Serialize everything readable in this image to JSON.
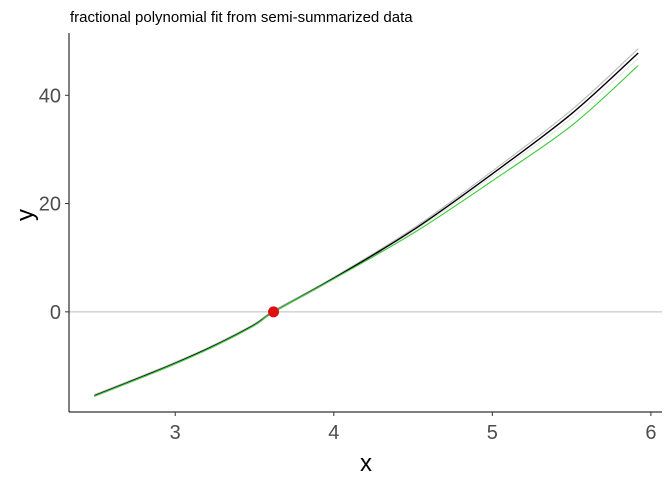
{
  "chart_data": {
    "type": "line",
    "title": "fractional polynomial fit from semi-summarized data",
    "xlabel": "x",
    "ylabel": "y",
    "xlim": [
      2.33,
      6.07
    ],
    "ylim": [
      -18.5,
      51.5
    ],
    "x_ticks": [
      3,
      4,
      5,
      6
    ],
    "y_ticks": [
      0,
      20,
      40
    ],
    "grid": false,
    "legend": "none",
    "reference_line": {
      "y": 0,
      "color": "#bdbdbd"
    },
    "series": [
      {
        "color": "#000000",
        "points": [
          [
            2.49,
            -15.5
          ],
          [
            2.8,
            -11.9
          ],
          [
            3.0,
            -9.5
          ],
          [
            3.25,
            -6.2
          ],
          [
            3.5,
            -2.4
          ],
          [
            3.62,
            0.0
          ],
          [
            4.0,
            6.2
          ],
          [
            4.5,
            15.1
          ],
          [
            5.0,
            25.5
          ],
          [
            5.5,
            36.6
          ],
          [
            5.92,
            47.8
          ]
        ]
      },
      {
        "color": "#e6e6e6",
        "points": [
          [
            2.49,
            -15.7
          ],
          [
            2.8,
            -12.1
          ],
          [
            3.0,
            -9.7
          ],
          [
            3.25,
            -6.4
          ],
          [
            3.5,
            -2.6
          ],
          [
            3.62,
            -0.2
          ],
          [
            4.0,
            6.0
          ],
          [
            4.5,
            14.8
          ],
          [
            5.0,
            25.0
          ],
          [
            5.5,
            35.8
          ],
          [
            5.92,
            46.8
          ]
        ]
      },
      {
        "color": "#bdbdbd",
        "points": [
          [
            2.49,
            -15.3
          ],
          [
            2.8,
            -11.7
          ],
          [
            3.0,
            -9.3
          ],
          [
            3.25,
            -6.0
          ],
          [
            3.5,
            -2.2
          ],
          [
            3.62,
            0.2
          ],
          [
            4.0,
            6.4
          ],
          [
            4.5,
            15.4
          ],
          [
            5.0,
            26.0
          ],
          [
            5.5,
            37.3
          ],
          [
            5.92,
            48.6
          ]
        ]
      },
      {
        "color": "#33cc33",
        "points": [
          [
            2.49,
            -15.6
          ],
          [
            2.8,
            -12.0
          ],
          [
            3.0,
            -9.6
          ],
          [
            3.25,
            -6.3
          ],
          [
            3.5,
            -2.5
          ],
          [
            3.62,
            0.0
          ],
          [
            4.0,
            6.1
          ],
          [
            4.5,
            14.5
          ],
          [
            5.0,
            24.2
          ],
          [
            5.5,
            34.4
          ],
          [
            5.92,
            45.5
          ]
        ]
      }
    ],
    "highlight_point": {
      "x": 3.62,
      "y": 0,
      "color": "#dd1111"
    }
  }
}
